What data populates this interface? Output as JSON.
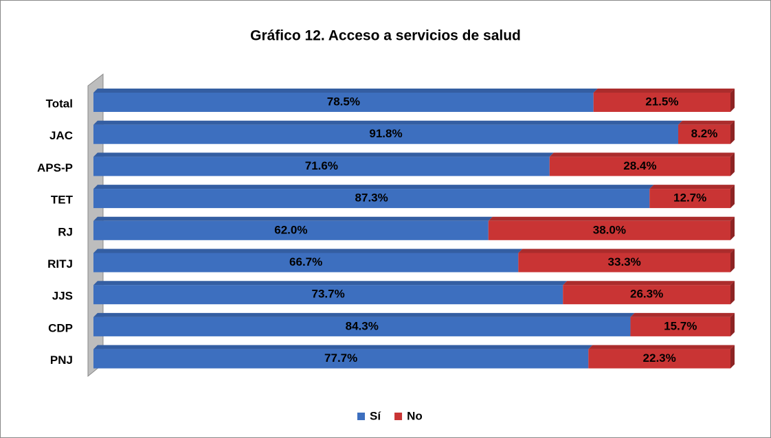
{
  "chart_data": {
    "type": "stacked-barh",
    "title": "Gráfico 12. Acceso a servicios de salud",
    "categories": [
      "Total",
      "JAC",
      "APS-P",
      "TET",
      "RJ",
      "RITJ",
      "JJS",
      "CDP",
      "PNJ"
    ],
    "xlim": [
      0,
      100
    ],
    "legend": "bottom",
    "series": [
      {
        "name": "Sí",
        "color": "#3d6fbf",
        "values": [
          78.5,
          91.8,
          71.6,
          87.3,
          62.0,
          66.7,
          73.7,
          84.3,
          77.7
        ],
        "value_labels": [
          "78.5%",
          "91.8%",
          "71.6%",
          "87.3%",
          "62.0%",
          "66.7%",
          "73.7%",
          "84.3%",
          "77.7%"
        ]
      },
      {
        "name": "No",
        "color": "#c93434",
        "values": [
          21.5,
          8.2,
          28.4,
          12.7,
          38.0,
          33.3,
          26.3,
          15.7,
          22.3
        ],
        "value_labels": [
          "21.5%",
          "8.2%",
          "28.4%",
          "12.7%",
          "38.0%",
          "33.3%",
          "26.3%",
          "15.7%",
          "22.3%"
        ]
      }
    ]
  }
}
